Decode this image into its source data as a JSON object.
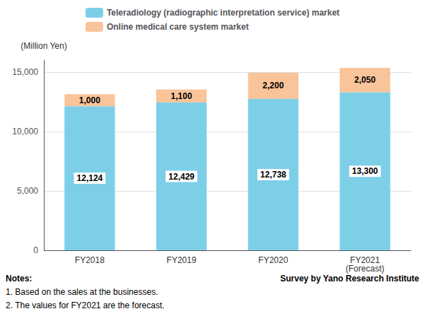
{
  "chart_data": {
    "type": "bar",
    "stacked": true,
    "categories": [
      "FY2018",
      "FY2019",
      "FY2020",
      "FY2021\n(Forecast)"
    ],
    "series": [
      {
        "name": "Teleradiology (radiographic interpretation service) market",
        "color": "#7DCFE8",
        "values": [
          12124,
          12429,
          12738,
          13300
        ],
        "value_labels": [
          "12,124",
          "12,429",
          "12,738",
          "13,300"
        ]
      },
      {
        "name": "Online medical care system market",
        "color": "#F9C49A",
        "values": [
          1000,
          1100,
          2200,
          2050
        ],
        "value_labels": [
          "1,000",
          "1,100",
          "2,200",
          "2,050"
        ]
      }
    ],
    "ylabel": "(Million Yen)",
    "ylim": [
      0,
      16000
    ],
    "yticks": [
      0,
      {
        "value": 5000,
        "label": "5,000"
      },
      {
        "value": 10000,
        "label": "10,000"
      },
      {
        "value": 15000,
        "label": "15,000"
      }
    ],
    "grid": true,
    "data_labels": true,
    "legend": "top",
    "annotations": [
      "Notes:",
      "1. Based on the sales at the businesses.",
      "2. The values for FY2021 are the forecast.",
      "Survey by Yano Research Institute"
    ]
  }
}
